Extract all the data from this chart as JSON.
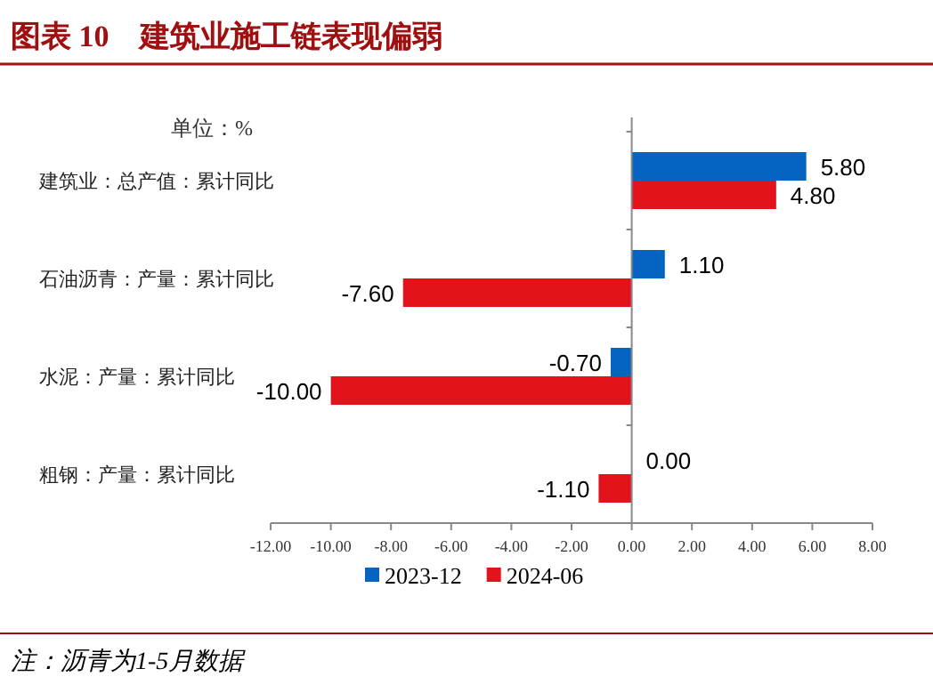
{
  "chart_data": {
    "type": "bar",
    "orientation": "horizontal",
    "title": "图表 10　建筑业施工链表现偏弱",
    "categories": [
      "建筑业：总产值：累计同比",
      "石油沥青：产量：累计同比",
      "水泥：产量：累计同比",
      "粗钢：产量：累计同比"
    ],
    "series": [
      {
        "name": "2023-12",
        "color": "#0563c1",
        "values": [
          5.8,
          1.1,
          -0.7,
          0.0
        ],
        "value_labels": [
          "5.80",
          "1.10",
          "-0.70",
          "0.00"
        ]
      },
      {
        "name": "2024-06",
        "color": "#e3131b",
        "values": [
          4.8,
          -7.6,
          -10.0,
          -1.1
        ],
        "value_labels": [
          "4.80",
          "-7.60",
          "-10.00",
          "-1.10"
        ]
      }
    ],
    "xlim": [
      -12,
      8
    ],
    "xticks": [
      {
        "value": -12,
        "label": "-12.00"
      },
      {
        "value": -10,
        "label": "-10.00"
      },
      {
        "value": -8,
        "label": "-8.00"
      },
      {
        "value": -6,
        "label": "-6.00"
      },
      {
        "value": -4,
        "label": "-4.00"
      },
      {
        "value": -2,
        "label": "-2.00"
      },
      {
        "value": 0,
        "label": "0.00"
      },
      {
        "value": 2,
        "label": "2.00"
      },
      {
        "value": 4,
        "label": "4.00"
      },
      {
        "value": 6,
        "label": "6.00"
      },
      {
        "value": 8,
        "label": "8.00"
      }
    ],
    "legend": "bottom",
    "annotations": [
      "单位：%",
      "注：沥青为1-5月数据"
    ]
  }
}
